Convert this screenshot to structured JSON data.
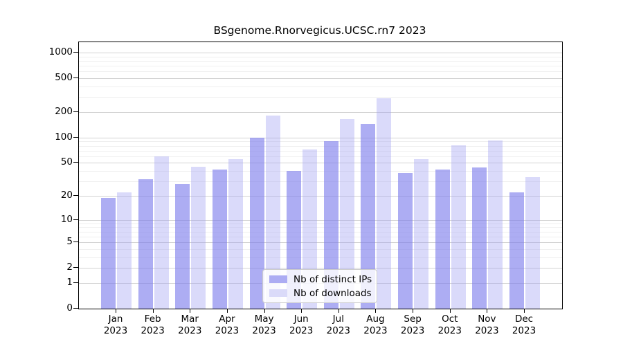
{
  "chart_data": {
    "type": "bar",
    "title": "BSgenome.Rnorvegicus.UCSC.rn7 2023",
    "categories": [
      "Jan",
      "Feb",
      "Mar",
      "Apr",
      "May",
      "Jun",
      "Jul",
      "Aug",
      "Sep",
      "Oct",
      "Nov",
      "Dec"
    ],
    "year_label": "2023",
    "series": [
      {
        "name": "Nb of distinct IPs",
        "values": [
          19,
          32,
          28,
          42,
          100,
          40,
          90,
          145,
          38,
          42,
          44,
          22
        ]
      },
      {
        "name": "Nb of downloads",
        "values": [
          22,
          60,
          45,
          56,
          183,
          72,
          166,
          290,
          55,
          81,
          92,
          34
        ]
      }
    ],
    "yscale": "log10(1+x)",
    "yticks": [
      0,
      1,
      2,
      5,
      10,
      20,
      50,
      100,
      200,
      500,
      1000
    ],
    "minor_gridlines": [
      3,
      4,
      6,
      7,
      8,
      9,
      30,
      40,
      60,
      70,
      80,
      90,
      300,
      400,
      600,
      700,
      800,
      900
    ],
    "ylim_top": 1325,
    "grid": "on",
    "legend_position": "bottom-center-inside",
    "xlabel": "",
    "ylabel": ""
  },
  "colors": {
    "bar_distinct_ips": "rgba(122,122,235,0.62)",
    "bar_downloads": "rgba(158,158,242,0.38)",
    "legend_swatch_distinct_ips": "#acacf3",
    "legend_swatch_downloads": "#dadaf9",
    "grid_major": "#d2d2d2",
    "grid_minor": "#efefef",
    "axis": "#000000"
  },
  "legend": {
    "items": [
      {
        "label": "Nb of distinct IPs"
      },
      {
        "label": "Nb of downloads"
      }
    ]
  }
}
